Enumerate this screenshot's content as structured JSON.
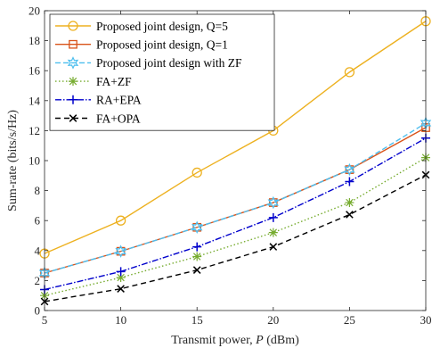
{
  "chart_data": {
    "type": "line",
    "title": "",
    "xlabel": "Transmit power, P (dBm)",
    "xlabel_parts": {
      "prefix": "Transmit power, ",
      "italic": "P",
      "suffix": " (dBm)"
    },
    "ylabel": "Sum-rate (bits/s/Hz)",
    "x": [
      5,
      10,
      15,
      20,
      25,
      30
    ],
    "xlim": [
      5,
      30
    ],
    "ylim": [
      0,
      20
    ],
    "xticks": [
      "5",
      "10",
      "15",
      "20",
      "25",
      "30"
    ],
    "yticks": [
      "0",
      "2",
      "4",
      "6",
      "8",
      "10",
      "12",
      "14",
      "16",
      "18",
      "20"
    ],
    "grid": false,
    "legend_position": "top-left",
    "series": [
      {
        "name": "Proposed joint design, Q=5",
        "color": "#EDB120",
        "marker": "circle",
        "dash": "",
        "values": [
          3.8,
          6.0,
          9.2,
          12.0,
          15.9,
          19.3
        ]
      },
      {
        "name": "Proposed joint design, Q=1",
        "color": "#D95319",
        "marker": "square",
        "dash": "",
        "values": [
          2.5,
          3.95,
          5.55,
          7.2,
          9.4,
          12.2
        ]
      },
      {
        "name": "Proposed joint design with ZF",
        "color": "#4DBEEE",
        "marker": "hexagram",
        "dash": "6,3",
        "values": [
          2.5,
          3.95,
          5.55,
          7.2,
          9.4,
          12.5
        ]
      },
      {
        "name": "FA+ZF",
        "color": "#77AC30",
        "marker": "asterisk",
        "dash": "1.5,2.5",
        "values": [
          1.0,
          2.2,
          3.6,
          5.2,
          7.2,
          10.2
        ]
      },
      {
        "name": "RA+EPA",
        "color": "#0000CC",
        "marker": "plus",
        "dash": "7,2,1.5,2",
        "values": [
          1.4,
          2.6,
          4.25,
          6.2,
          8.6,
          11.5
        ]
      },
      {
        "name": "FA+OPA",
        "color": "#000000",
        "marker": "x",
        "dash": "6,4",
        "values": [
          0.6,
          1.45,
          2.7,
          4.25,
          6.4,
          9.05
        ]
      }
    ]
  }
}
